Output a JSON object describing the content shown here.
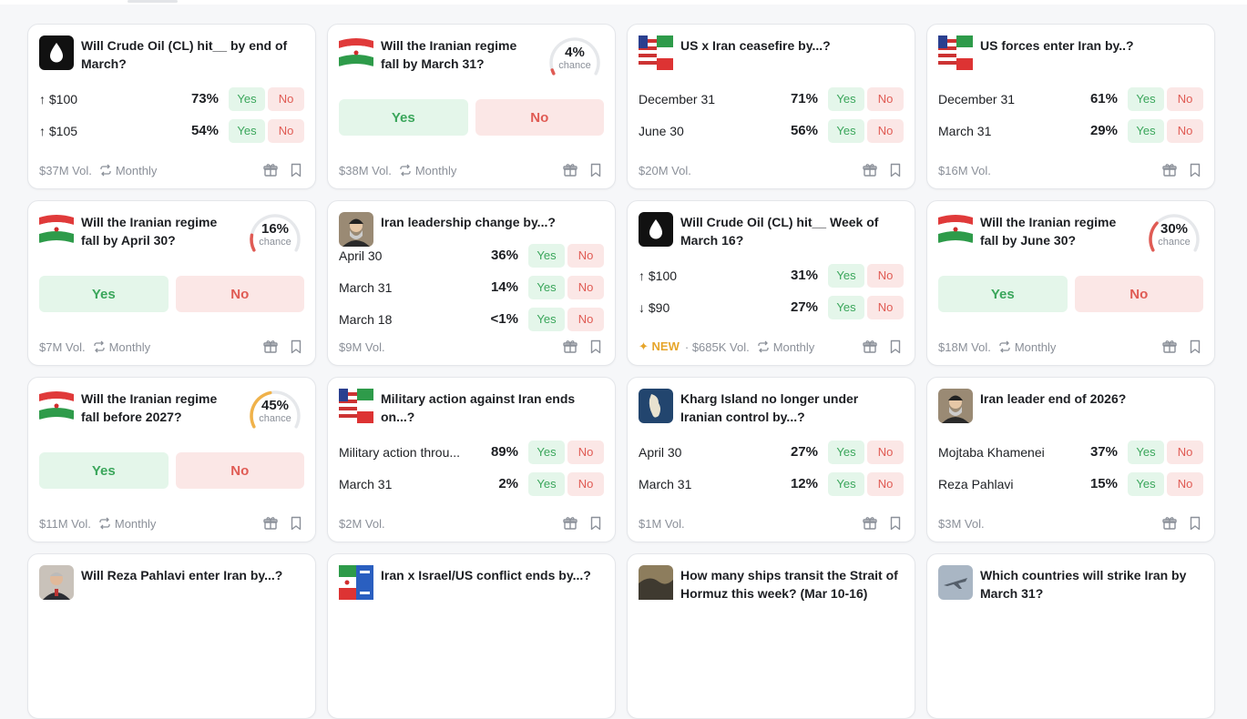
{
  "colors": {
    "yes_bg": "#e4f6ea",
    "yes_text": "#3aa65b",
    "no_bg": "#fbe7e6",
    "no_text": "#e05b54",
    "muted": "#8b9099",
    "new": "#e6a52a"
  },
  "cards": [
    {
      "thumb": "oil-drop-icon",
      "title": "Will Crude Oil (CL) hit__ by end of March?",
      "rows": [
        {
          "arrow": "↑",
          "label": "$100",
          "pct": "73%"
        },
        {
          "arrow": "↑",
          "label": "$105",
          "pct": "54%"
        }
      ],
      "vol": "$37M Vol.",
      "freq": "Monthly"
    },
    {
      "thumb": "iran-flag-icon",
      "title": "Will the Iranian regime fall by March 31?",
      "chance": {
        "pct": "4%",
        "label": "chance",
        "value": 4,
        "color": "#e05b54"
      },
      "vol": "$38M Vol.",
      "freq": "Monthly"
    },
    {
      "thumb": "us-iran-flags-icon",
      "title": "US x Iran ceasefire by...?",
      "rows": [
        {
          "arrow": "",
          "label": "December 31",
          "pct": "71%"
        },
        {
          "arrow": "",
          "label": "June 30",
          "pct": "56%"
        }
      ],
      "vol": "$20M Vol."
    },
    {
      "thumb": "us-iran-flags-icon",
      "title": "US forces enter Iran by..?",
      "rows": [
        {
          "arrow": "",
          "label": "December 31",
          "pct": "61%"
        },
        {
          "arrow": "",
          "label": "March 31",
          "pct": "29%"
        }
      ],
      "vol": "$16M Vol."
    },
    {
      "thumb": "iran-flag-icon",
      "title": "Will the Iranian regime fall by April 30?",
      "chance": {
        "pct": "16%",
        "label": "chance",
        "value": 16,
        "color": "#e05b54"
      },
      "vol": "$7M Vol.",
      "freq": "Monthly"
    },
    {
      "thumb": "leader-portrait-icon",
      "title": "Iran leadership change by...?",
      "scroll_rows": [
        {
          "label": "April 30",
          "pct": "36%"
        },
        {
          "label": "March 31",
          "pct": "14%"
        },
        {
          "label": "March 18",
          "pct": "<1%"
        }
      ],
      "vol": "$9M Vol."
    },
    {
      "thumb": "oil-drop-icon",
      "title": "Will Crude Oil (CL) hit__ Week of March 16?",
      "rows": [
        {
          "arrow": "↑",
          "label": "$100",
          "pct": "31%"
        },
        {
          "arrow": "↓",
          "label": "$90",
          "pct": "27%"
        }
      ],
      "new": "NEW",
      "vol": "$685K Vol.",
      "freq": "Monthly"
    },
    {
      "thumb": "iran-flag-icon",
      "title": "Will the Iranian regime fall by June 30?",
      "chance": {
        "pct": "30%",
        "label": "chance",
        "value": 30,
        "color": "#e05b54"
      },
      "vol": "$18M Vol.",
      "freq": "Monthly"
    },
    {
      "thumb": "iran-flag-icon",
      "title": "Will the Iranian regime fall before 2027?",
      "chance": {
        "pct": "45%",
        "label": "chance",
        "value": 45,
        "color": "#f0b24a"
      },
      "vol": "$11M Vol.",
      "freq": "Monthly"
    },
    {
      "thumb": "us-iran-flags-icon",
      "title": "Military action against Iran ends on...?",
      "rows": [
        {
          "arrow": "",
          "label": "Military action throu...",
          "pct": "89%"
        },
        {
          "arrow": "",
          "label": "March 31",
          "pct": "2%"
        }
      ],
      "vol": "$2M Vol."
    },
    {
      "thumb": "island-map-icon",
      "title": "Kharg Island no longer under Iranian control by...?",
      "rows": [
        {
          "arrow": "",
          "label": "April 30",
          "pct": "27%"
        },
        {
          "arrow": "",
          "label": "March 31",
          "pct": "12%"
        }
      ],
      "vol": "$1M Vol."
    },
    {
      "thumb": "leader-portrait-icon",
      "title": "Iran leader end of 2026?",
      "rows": [
        {
          "arrow": "",
          "label": "Mojtaba Khamenei",
          "pct": "37%"
        },
        {
          "arrow": "",
          "label": "Reza Pahlavi",
          "pct": "15%"
        }
      ],
      "vol": "$3M Vol."
    },
    {
      "thumb": "person-portrait-icon",
      "title": "Will Reza Pahlavi enter Iran by...?"
    },
    {
      "thumb": "iran-israel-flags-icon",
      "title": "Iran x Israel/US conflict ends by...?"
    },
    {
      "thumb": "strait-map-icon",
      "title": "How many ships transit the Strait of Hormuz this week? (Mar 10-16)"
    },
    {
      "thumb": "jet-icon",
      "title": "Which countries will strike Iran by March 31?"
    }
  ],
  "labels": {
    "yes": "Yes",
    "no": "No"
  }
}
